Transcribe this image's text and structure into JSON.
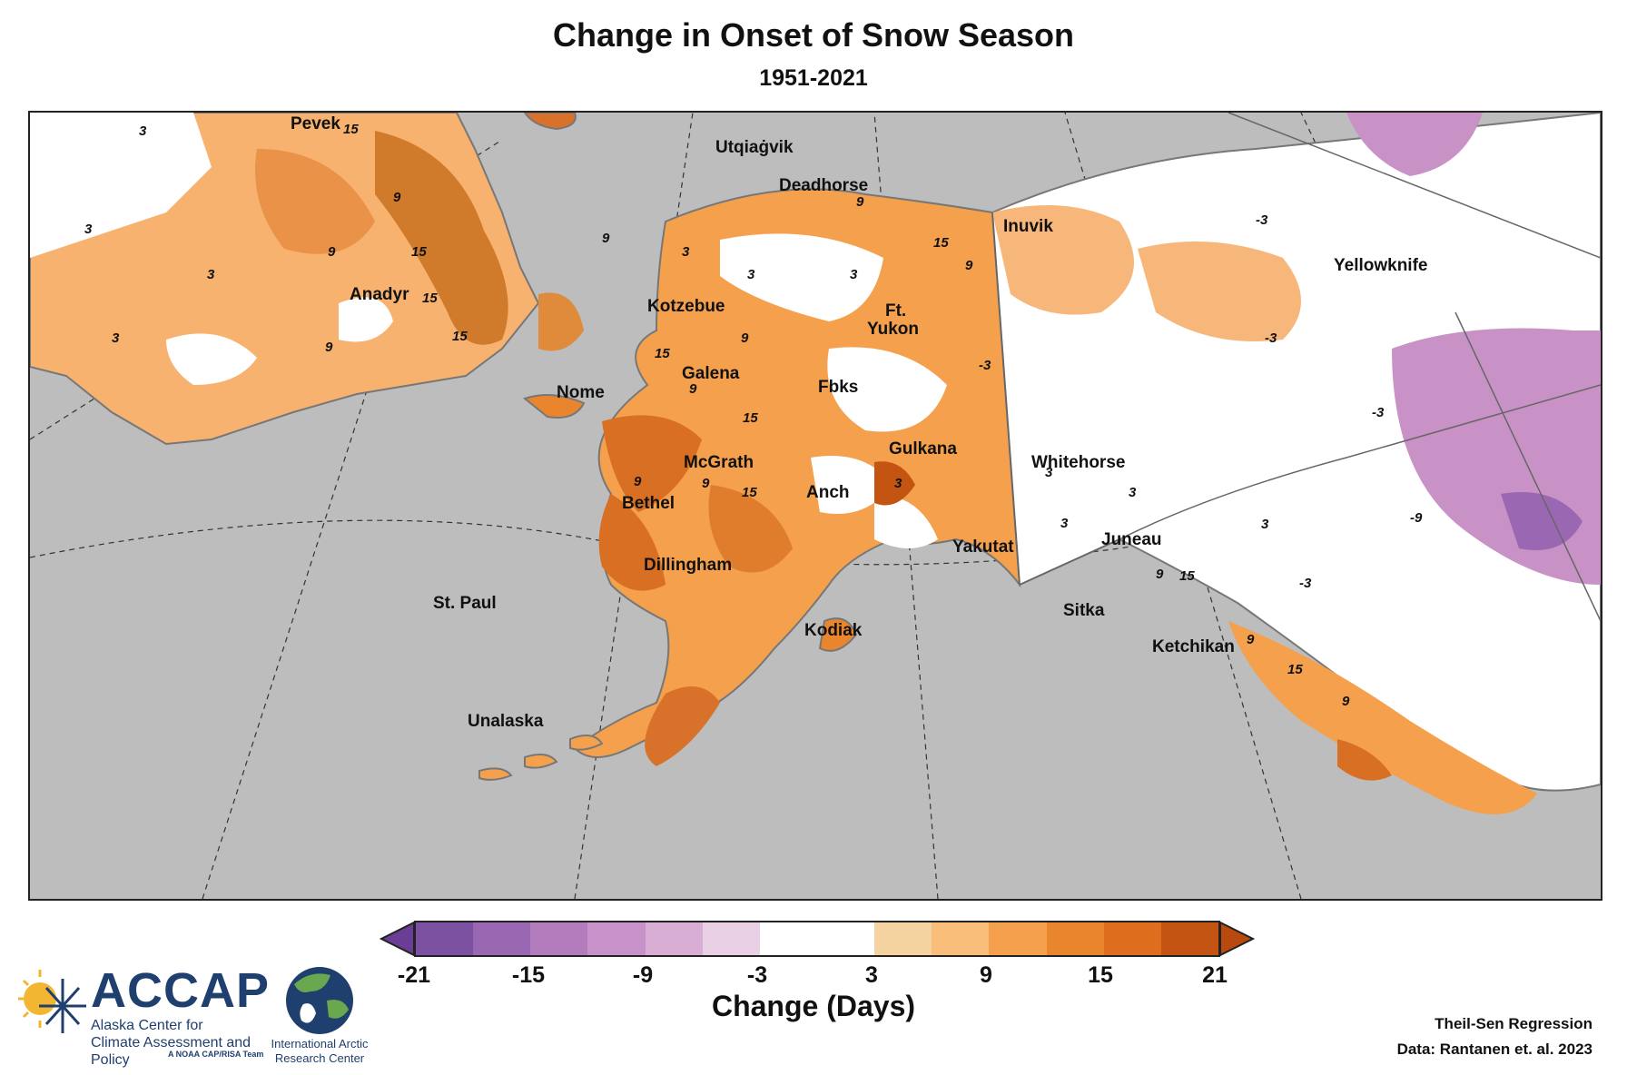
{
  "title": "Change in Onset of Snow Season",
  "subtitle": "1951-2021",
  "map": {
    "place_labels": [
      "Pevek",
      "Utqiaġvik",
      "Deadhorse",
      "Inuvik",
      "Yellowknife",
      "Anadyr",
      "Kotzebue",
      "Ft.",
      "Yukon",
      "Nome",
      "Galena",
      "Fbks",
      "Gulkana",
      "Whitehorse",
      "McGrath",
      "Anch",
      "Bethel",
      "Yakutat",
      "Juneau",
      "Dillingham",
      "St. Paul",
      "Sitka",
      "Kodiak",
      "Ketchikan",
      "Unalaska"
    ],
    "contour_labels": [
      "3",
      "15",
      "9",
      "3",
      "3",
      "9",
      "15",
      "15",
      "15",
      "3",
      "9",
      "3",
      "9",
      "9",
      "3",
      "15",
      "3",
      "9",
      "15",
      "15",
      "9",
      "9",
      "15",
      "9",
      "9",
      "3",
      "3",
      "3",
      "-3",
      "-3",
      "-3",
      "-3",
      "9",
      "15",
      "9",
      "15",
      "9",
      "3",
      "3",
      "-9",
      "-3"
    ]
  },
  "legend": {
    "title": "Change (Days)",
    "ticks": [
      "-21",
      "-15",
      "-9",
      "-3",
      "3",
      "9",
      "15",
      "21"
    ],
    "colors": [
      "#7c51a2",
      "#9a68b2",
      "#b27cbd",
      "#c792c9",
      "#d9aed5",
      "#ead0e4",
      "#ffffff",
      "#ffffff",
      "#f4d3a1",
      "#f8be7a",
      "#f4a04d",
      "#e9852d",
      "#de6d1e",
      "#c35412"
    ],
    "under_color": "#6a3e95",
    "over_color": "#b84a10"
  },
  "method": "Theil-Sen Regression",
  "source": "Data: Rantanen et. al. 2023",
  "logos": {
    "accap_name": "ACCAP",
    "accap_full": "Alaska Center for Climate Assessment and Policy",
    "accap_tag": "A NOAA CAP/RISA Team",
    "iarc_name": "International Arctic Research Center"
  }
}
